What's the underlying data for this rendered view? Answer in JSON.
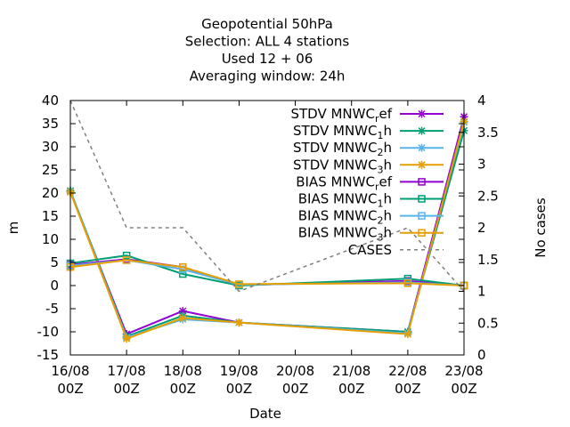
{
  "chart_data": {
    "type": "line",
    "title_lines": [
      "Geopotential 50hPa",
      "Selection: ALL      4 stations",
      "Used  12 + 06",
      "Averaging window: 24h"
    ],
    "xlabel": "Date",
    "ylabel": "m",
    "y2label": "No cases",
    "x": [
      0,
      1,
      2,
      3,
      4,
      5,
      6,
      7
    ],
    "xticks": [
      [
        "16/08",
        "00Z"
      ],
      [
        "17/08",
        "00Z"
      ],
      [
        "18/08",
        "00Z"
      ],
      [
        "19/08",
        "00Z"
      ],
      [
        "20/08",
        "00Z"
      ],
      [
        "21/08",
        "00Z"
      ],
      [
        "22/08",
        "00Z"
      ],
      [
        "23/08",
        "00Z"
      ]
    ],
    "ylim": [
      -15,
      40
    ],
    "yticks": [
      -15,
      -10,
      -5,
      0,
      5,
      10,
      15,
      20,
      25,
      30,
      35,
      40
    ],
    "y2lim": [
      0,
      4
    ],
    "y2ticks": [
      "0",
      "0.5",
      "1",
      "1.5",
      "2",
      "2.5",
      "3",
      "3.5",
      "4"
    ],
    "legend_position": "top-right",
    "series": [
      {
        "name": "STDV MNWC_ref",
        "base": "STDV MNWC",
        "sub": "r",
        "tail": "ef",
        "color": "#9400d3",
        "marker": "star",
        "axis": "y1",
        "values": [
          20.3,
          -10.5,
          -5.5,
          -8.0,
          null,
          null,
          -10.0,
          36.5
        ]
      },
      {
        "name": "STDV MNWC_1h",
        "base": "STDV MNWC",
        "sub": "1",
        "tail": "h",
        "color": "#009e73",
        "marker": "star",
        "axis": "y1",
        "values": [
          20.5,
          -11.0,
          -6.5,
          -8.0,
          null,
          null,
          -10.0,
          33.5
        ]
      },
      {
        "name": "STDV MNWC_2h",
        "base": "STDV MNWC",
        "sub": "2",
        "tail": "h",
        "color": "#56b4e9",
        "marker": "star",
        "axis": "y1",
        "values": [
          20.3,
          -11.2,
          -7.3,
          -8.0,
          null,
          null,
          -10.3,
          35.3
        ]
      },
      {
        "name": "STDV MNWC_3h",
        "base": "STDV MNWC",
        "sub": "3",
        "tail": "h",
        "color": "#e69f00",
        "marker": "star",
        "axis": "y1",
        "values": [
          20.2,
          -11.5,
          -7.0,
          -8.0,
          null,
          null,
          -10.5,
          35.5
        ]
      },
      {
        "name": "BIAS MNWC_ref",
        "base": "BIAS MNWC",
        "sub": "r",
        "tail": "ef",
        "color": "#9400d3",
        "marker": "square",
        "axis": "y1",
        "values": [
          4.5,
          5.7,
          4.0,
          0.1,
          null,
          null,
          1.0,
          0.0
        ]
      },
      {
        "name": "BIAS MNWC_1h",
        "base": "BIAS MNWC",
        "sub": "1",
        "tail": "h",
        "color": "#009e73",
        "marker": "square",
        "axis": "y1",
        "values": [
          4.8,
          6.5,
          2.5,
          0.0,
          null,
          null,
          1.5,
          0.0
        ]
      },
      {
        "name": "BIAS MNWC_2h",
        "base": "BIAS MNWC",
        "sub": "2",
        "tail": "h",
        "color": "#56b4e9",
        "marker": "square",
        "axis": "y1",
        "values": [
          4.3,
          5.5,
          3.5,
          0.2,
          null,
          null,
          0.7,
          0.0
        ]
      },
      {
        "name": "BIAS MNWC_3h",
        "base": "BIAS MNWC",
        "sub": "3",
        "tail": "h",
        "color": "#e69f00",
        "marker": "square",
        "axis": "y1",
        "values": [
          4.0,
          5.5,
          4.0,
          0.3,
          null,
          null,
          0.5,
          0.0
        ]
      },
      {
        "name": "CASES",
        "base": "CASES",
        "sub": "",
        "tail": "",
        "color": "#7f7f7f",
        "marker": "none",
        "dashed": true,
        "axis": "y2",
        "values": [
          4,
          2,
          2,
          1,
          null,
          null,
          2,
          1
        ]
      }
    ]
  }
}
